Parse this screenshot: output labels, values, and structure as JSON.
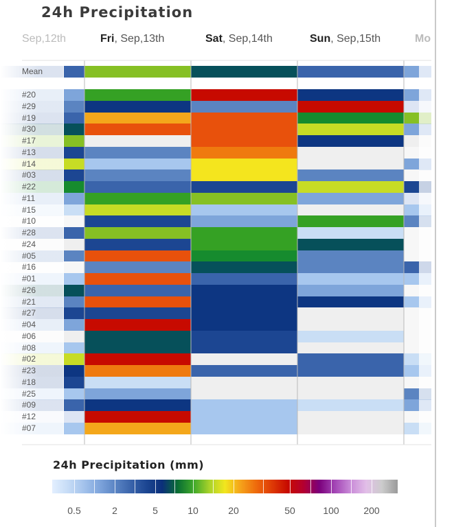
{
  "title": "24h Precipitation",
  "days": [
    {
      "bold": "",
      "rest": "Sep,12th",
      "faded": true
    },
    {
      "bold": "Fri",
      "rest": ", Sep,13th",
      "faded": false
    },
    {
      "bold": "Sat",
      "rest": ", Sep,14th",
      "faded": false
    },
    {
      "bold": "Sun",
      "rest": ", Sep,15th",
      "faded": false
    },
    {
      "bold": "Mo",
      "rest": "",
      "faded": true
    }
  ],
  "palette": {
    "A": "#c9def5",
    "B": "#a7c7ee",
    "C": "#7ea5da",
    "D": "#5b84c1",
    "E": "#3a64ab",
    "F": "#1c4692",
    "G": "#0d3682",
    "H": "#06505a",
    "I": "#168b2e",
    "J": "#35a124",
    "K": "#86c024",
    "L": "#c7dc25",
    "M": "#f4e51e",
    "N": "#f4a71b",
    "O": "#ef7a0f",
    "P": "#e8510c",
    "Q": "#d02a08",
    "R": "#c70a00",
    "W": "#efefef",
    "w": "#f7f7f7",
    "s": "#dde5f4",
    "g": "#e8f6e8",
    "y": "#f5f8dc"
  },
  "chart_data": {
    "type": "heatmap",
    "title": "24h Precipitation",
    "columns": [
      "Sep,12th",
      "Fri, Sep,13th",
      "Sat, Sep,14th",
      "Sun, Sep,15th",
      "Mo"
    ],
    "rows": [
      {
        "label": "Mean",
        "cells": "EKHEC"
      },
      {
        "label": "#20",
        "cells": "CJRGC"
      },
      {
        "label": "#29",
        "cells": "DGDRs"
      },
      {
        "label": "#19",
        "cells": "ENPIK"
      },
      {
        "label": "#30",
        "cells": "HPPLC"
      },
      {
        "label": "#17",
        "cells": "KWPGW"
      },
      {
        "label": "#13",
        "cells": "FDOWw"
      },
      {
        "label": "#14",
        "cells": "LBMWC"
      },
      {
        "label": "#03",
        "cells": "FDMDw"
      },
      {
        "label": "#22",
        "cells": "IEFLF"
      },
      {
        "label": "#11",
        "cells": "CJKCs"
      },
      {
        "label": "#15",
        "cells": "ALBWB"
      },
      {
        "label": "#10",
        "cells": "wFCJD"
      },
      {
        "label": "#28",
        "cells": "EKJAw"
      },
      {
        "label": "#24",
        "cells": "WFJHw"
      },
      {
        "label": "#05",
        "cells": "DPIDw"
      },
      {
        "label": "#16",
        "cells": "wDHDE"
      },
      {
        "label": "#01",
        "cells": "BPEBB"
      },
      {
        "label": "#26",
        "cells": "HEGCw"
      },
      {
        "label": "#21",
        "cells": "DPGGB"
      },
      {
        "label": "#27",
        "cells": "FFGWw"
      },
      {
        "label": "#04",
        "cells": "CRGWw"
      },
      {
        "label": "#06",
        "cells": "WHFAw"
      },
      {
        "label": "#08",
        "cells": "BHFWw"
      },
      {
        "label": "#02",
        "cells": "LRWEA"
      },
      {
        "label": "#23",
        "cells": "GOEEB"
      },
      {
        "label": "#18",
        "cells": "FAWWw"
      },
      {
        "label": "#25",
        "cells": "BCWWD"
      },
      {
        "label": "#09",
        "cells": "EGBAC"
      },
      {
        "label": "#12",
        "cells": "sRBWw"
      },
      {
        "label": "#07",
        "cells": "BNBWA"
      }
    ]
  },
  "legend": {
    "title": "24h Precipitation (mm)",
    "colors": [
      "#e3efff",
      "#c6dcf6",
      "#a4c3ec",
      "#7fa5dc",
      "#5b85c4",
      "#3a64ab",
      "#1c4692",
      "#0b2f7a",
      "#0a6e33",
      "#3ea82a",
      "#a8d22a",
      "#f2e61e",
      "#f5a21a",
      "#ee6a0c",
      "#de3a06",
      "#c70a00",
      "#b40030",
      "#7b007b",
      "#a345b5",
      "#c98bd8",
      "#e2bfe8",
      "#cccccc",
      "#9a9a9a"
    ],
    "ticks": [
      "0.5",
      "2",
      "5",
      "10",
      "20",
      "50",
      "100",
      "200"
    ]
  }
}
